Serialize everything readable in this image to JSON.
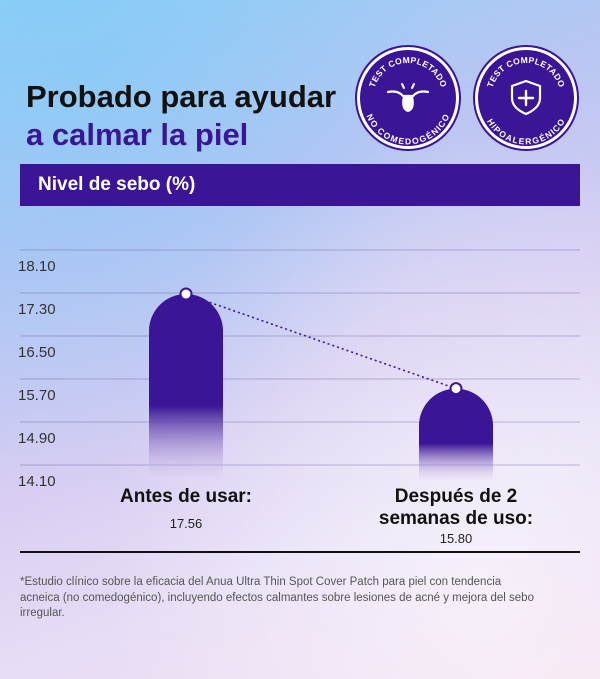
{
  "title": {
    "line1": "Probado para ayudar",
    "line2": "a calmar la piel"
  },
  "badges": [
    {
      "top_text": "TEST COMPLETADO",
      "bottom_text": "NO COMEDOGÉNICO",
      "icon": "skin-pore-icon"
    },
    {
      "top_text": "TEST COMPLETADO",
      "bottom_text": "HIPOALERGÉNICO",
      "icon": "shield-plus-icon"
    }
  ],
  "colors": {
    "accent": "#3a1596",
    "bar_top": "#3a1596",
    "bar_bottom": "#e4d6f4",
    "dotted_line": "#3a1596"
  },
  "chart_data": {
    "type": "bar",
    "title": "Nivel de sebo (%)",
    "categories": [
      "Antes de usar:",
      "Después de 2 semanas de uso:"
    ],
    "category_lines": [
      [
        "Antes de usar:"
      ],
      [
        "Después de 2",
        "semanas de uso:"
      ]
    ],
    "values": [
      17.56,
      15.8
    ],
    "value_labels": [
      "17.56",
      "15.80"
    ],
    "yticks": [
      "18.10",
      "17.30",
      "16.50",
      "15.70",
      "14.90",
      "14.10"
    ],
    "ylim": [
      14.1,
      18.1
    ],
    "grid": true,
    "markers": "dotted connector between bar tops"
  },
  "footnote": "*Estudio clínico sobre la eficacia del Anua Ultra Thin Spot Cover Patch para piel con tendencia acneica (no comedogénico), incluyendo efectos calmantes sobre lesiones de acné y mejora del sebo irregular."
}
